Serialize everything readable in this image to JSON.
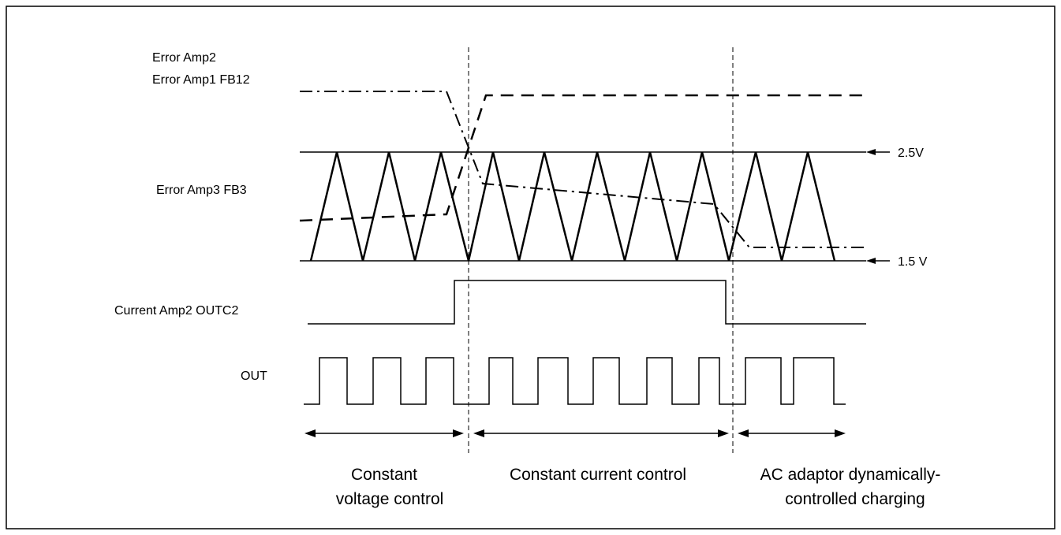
{
  "signals": {
    "error_amp2": "Error Amp2",
    "error_amp1_fb12": "Error Amp1 FB12",
    "error_amp3_fb3": "Error Amp3 FB3",
    "current_amp2_outc2": "Current Amp2 OUTC2",
    "out": "OUT"
  },
  "levels": {
    "upper": "2.5V",
    "lower": "1.5 V"
  },
  "regions": {
    "constant_voltage": [
      "Constant",
      "voltage control"
    ],
    "constant_current": "Constant current control",
    "ac_adaptor": [
      "AC adaptor dynamically-",
      "controlled charging"
    ]
  }
}
